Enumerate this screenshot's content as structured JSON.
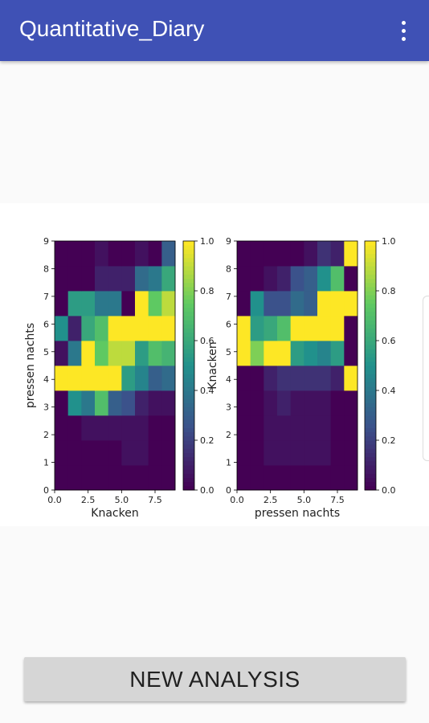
{
  "app_bar": {
    "title": "Quantitative_Diary",
    "overflow_icon": "more-vert-icon",
    "background": "#3f51b5"
  },
  "chart_data": [
    {
      "type": "heatmap",
      "xlabel": "Knacken",
      "ylabel": "pressen nachts",
      "x_range": [
        0,
        9
      ],
      "y_range": [
        0,
        9
      ],
      "x_ticks": [
        "0.0",
        "2.5",
        "5.0",
        "7.5"
      ],
      "y_ticks": [
        "0",
        "1",
        "2",
        "3",
        "4",
        "5",
        "6",
        "7",
        "8",
        "9"
      ],
      "colormap": "viridis",
      "colorbar_range": [
        0,
        1
      ],
      "colorbar_ticks": [
        "0.0",
        "0.2",
        "0.4",
        "0.6",
        "0.8",
        "1.0"
      ],
      "values": [
        [
          0.0,
          0.0,
          0.0,
          0.0,
          0.0,
          0.0,
          0.0,
          0.0,
          0.0
        ],
        [
          0.0,
          0.0,
          0.0,
          0.0,
          0.0,
          0.05,
          0.05,
          0.0,
          0.0
        ],
        [
          0.0,
          0.0,
          0.05,
          0.05,
          0.05,
          0.05,
          0.05,
          0.0,
          0.0
        ],
        [
          0.0,
          0.5,
          0.4,
          0.7,
          0.3,
          0.25,
          0.1,
          0.05,
          0.05
        ],
        [
          1.0,
          1.0,
          1.0,
          1.0,
          1.0,
          0.55,
          0.45,
          0.3,
          0.35
        ],
        [
          0.05,
          0.4,
          1.0,
          0.75,
          0.9,
          0.9,
          0.55,
          0.7,
          0.65
        ],
        [
          0.5,
          0.1,
          0.6,
          0.7,
          1.0,
          1.0,
          1.0,
          1.0,
          1.0
        ],
        [
          0.0,
          0.55,
          0.55,
          0.4,
          0.4,
          0.0,
          1.0,
          0.75,
          0.9
        ],
        [
          0.0,
          0.0,
          0.0,
          0.1,
          0.1,
          0.1,
          0.35,
          0.4,
          0.6
        ],
        [
          0.0,
          0.0,
          0.0,
          0.05,
          0.0,
          0.0,
          0.05,
          0.0,
          0.3
        ]
      ]
    },
    {
      "type": "heatmap",
      "xlabel": "pressen nachts",
      "ylabel": "Knacken",
      "x_range": [
        0,
        9
      ],
      "y_range": [
        0,
        9
      ],
      "x_ticks": [
        "0.0",
        "2.5",
        "5.0",
        "7.5"
      ],
      "y_ticks": [
        "0",
        "1",
        "2",
        "3",
        "4",
        "5",
        "6",
        "7",
        "8",
        "9"
      ],
      "colormap": "viridis",
      "colorbar_range": [
        0,
        1
      ],
      "colorbar_ticks": [
        "0.0",
        "0.2",
        "0.4",
        "0.6",
        "0.8",
        "1.0"
      ],
      "values": [
        [
          0.0,
          0.0,
          0.0,
          0.0,
          0.0,
          0.0,
          0.0,
          0.0,
          0.0
        ],
        [
          0.0,
          0.0,
          0.05,
          0.05,
          0.05,
          0.05,
          0.05,
          0.0,
          0.0
        ],
        [
          0.0,
          0.0,
          0.05,
          0.05,
          0.05,
          0.05,
          0.05,
          0.0,
          0.0
        ],
        [
          0.0,
          0.0,
          0.05,
          0.1,
          0.05,
          0.05,
          0.05,
          0.0,
          0.0
        ],
        [
          0.0,
          0.0,
          0.1,
          0.15,
          0.15,
          0.15,
          0.15,
          0.1,
          1.0
        ],
        [
          1.0,
          0.8,
          1.0,
          1.0,
          0.55,
          0.5,
          0.45,
          0.55,
          0.0
        ],
        [
          1.0,
          0.55,
          0.6,
          0.7,
          1.0,
          1.0,
          1.0,
          1.0,
          0.0
        ],
        [
          0.0,
          0.5,
          0.25,
          0.25,
          0.35,
          0.3,
          1.0,
          1.0,
          1.0
        ],
        [
          0.0,
          0.0,
          0.05,
          0.1,
          0.25,
          0.3,
          0.5,
          0.7,
          0.0
        ],
        [
          0.0,
          0.0,
          0.0,
          0.0,
          0.0,
          0.05,
          0.15,
          0.1,
          1.0
        ]
      ]
    }
  ],
  "new_analysis_button": {
    "label": "NEW ANALYSIS"
  }
}
